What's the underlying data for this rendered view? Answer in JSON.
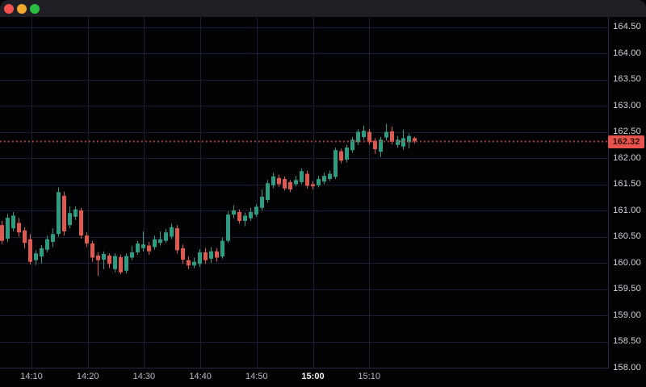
{
  "window": {
    "traffic_lights": {
      "close": "#f4544d",
      "minimize": "#f3a92d",
      "fullscreen": "#2bbf40"
    }
  },
  "colors": {
    "background": "#020204",
    "titlebar": "#1f1f25",
    "grid": "#1b1d33",
    "axis_border": "#272b42",
    "up": "#2f9c82",
    "down": "#dd5a50",
    "price_line": "#b2423c",
    "badge_bg": "#e9534e",
    "badge_text": "#2e0d0b",
    "axis_label": "#d4d6da",
    "time_label": "#b8bac2",
    "time_label_bold": "#f0f1f2"
  },
  "chart_data": {
    "type": "candlestick",
    "last_price": "162.32",
    "y_axis": {
      "min": 158.0,
      "max": 164.5,
      "step": 0.5,
      "labels": [
        "164.50",
        "164.00",
        "163.50",
        "163.00",
        "162.50",
        "162.00",
        "161.50",
        "161.00",
        "160.50",
        "160.00",
        "159.50",
        "159.00",
        "158.50",
        "158.00"
      ]
    },
    "x_axis": {
      "labels": [
        {
          "text": "14:10",
          "bold": false
        },
        {
          "text": "14:20",
          "bold": false
        },
        {
          "text": "14:30",
          "bold": false
        },
        {
          "text": "14:40",
          "bold": false
        },
        {
          "text": "14:50",
          "bold": false
        },
        {
          "text": "15:00",
          "bold": true
        },
        {
          "text": "15:10",
          "bold": false
        }
      ]
    },
    "candles": [
      {
        "t": "14:05",
        "o": 160.72,
        "h": 160.8,
        "l": 160.36,
        "c": 160.42
      },
      {
        "t": "14:06",
        "o": 160.46,
        "h": 160.93,
        "l": 160.4,
        "c": 160.86
      },
      {
        "t": "14:07",
        "o": 160.66,
        "h": 160.97,
        "l": 160.6,
        "c": 160.9
      },
      {
        "t": "14:08",
        "o": 160.76,
        "h": 160.86,
        "l": 160.5,
        "c": 160.58
      },
      {
        "t": "14:09",
        "o": 160.62,
        "h": 160.68,
        "l": 160.28,
        "c": 160.38
      },
      {
        "t": "14:10",
        "o": 160.45,
        "h": 160.55,
        "l": 159.97,
        "c": 160.02
      },
      {
        "t": "14:11",
        "o": 160.05,
        "h": 160.24,
        "l": 159.96,
        "c": 160.18
      },
      {
        "t": "14:12",
        "o": 160.12,
        "h": 160.34,
        "l": 159.99,
        "c": 160.28
      },
      {
        "t": "14:13",
        "o": 160.25,
        "h": 160.52,
        "l": 160.2,
        "c": 160.45
      },
      {
        "t": "14:14",
        "o": 160.4,
        "h": 160.66,
        "l": 160.3,
        "c": 160.55
      },
      {
        "t": "14:15",
        "o": 160.55,
        "h": 161.44,
        "l": 160.5,
        "c": 161.35
      },
      {
        "t": "14:16",
        "o": 161.28,
        "h": 161.36,
        "l": 160.52,
        "c": 160.6
      },
      {
        "t": "14:17",
        "o": 160.72,
        "h": 161.08,
        "l": 160.66,
        "c": 160.95
      },
      {
        "t": "14:18",
        "o": 160.88,
        "h": 161.08,
        "l": 160.82,
        "c": 161.02
      },
      {
        "t": "14:19",
        "o": 161.0,
        "h": 161.05,
        "l": 160.46,
        "c": 160.52
      },
      {
        "t": "14:20",
        "o": 160.52,
        "h": 160.58,
        "l": 160.3,
        "c": 160.37
      },
      {
        "t": "14:21",
        "o": 160.37,
        "h": 160.42,
        "l": 160.02,
        "c": 160.1
      },
      {
        "t": "14:22",
        "o": 160.14,
        "h": 160.2,
        "l": 159.75,
        "c": 160.05
      },
      {
        "t": "14:23",
        "o": 160.06,
        "h": 160.22,
        "l": 159.88,
        "c": 160.17
      },
      {
        "t": "14:24",
        "o": 160.14,
        "h": 160.18,
        "l": 159.9,
        "c": 159.98
      },
      {
        "t": "14:25",
        "o": 159.88,
        "h": 160.18,
        "l": 159.82,
        "c": 160.13
      },
      {
        "t": "14:26",
        "o": 160.11,
        "h": 160.16,
        "l": 159.78,
        "c": 159.82
      },
      {
        "t": "14:27",
        "o": 159.85,
        "h": 160.18,
        "l": 159.8,
        "c": 160.13
      },
      {
        "t": "14:28",
        "o": 160.1,
        "h": 160.32,
        "l": 160.05,
        "c": 160.2
      },
      {
        "t": "14:29",
        "o": 160.2,
        "h": 160.42,
        "l": 160.15,
        "c": 160.37
      },
      {
        "t": "14:30",
        "o": 160.28,
        "h": 160.6,
        "l": 160.22,
        "c": 160.35
      },
      {
        "t": "14:31",
        "o": 160.33,
        "h": 160.4,
        "l": 160.15,
        "c": 160.22
      },
      {
        "t": "14:32",
        "o": 160.3,
        "h": 160.52,
        "l": 160.25,
        "c": 160.45
      },
      {
        "t": "14:33",
        "o": 160.38,
        "h": 160.6,
        "l": 160.33,
        "c": 160.45
      },
      {
        "t": "14:34",
        "o": 160.42,
        "h": 160.65,
        "l": 160.38,
        "c": 160.58
      },
      {
        "t": "14:35",
        "o": 160.5,
        "h": 160.75,
        "l": 160.45,
        "c": 160.68
      },
      {
        "t": "14:36",
        "o": 160.66,
        "h": 160.72,
        "l": 160.18,
        "c": 160.24
      },
      {
        "t": "14:37",
        "o": 160.28,
        "h": 160.35,
        "l": 159.98,
        "c": 160.06
      },
      {
        "t": "14:38",
        "o": 160.05,
        "h": 160.12,
        "l": 159.88,
        "c": 159.95
      },
      {
        "t": "14:39",
        "o": 159.95,
        "h": 160.1,
        "l": 159.9,
        "c": 160.02
      },
      {
        "t": "14:40",
        "o": 159.98,
        "h": 160.26,
        "l": 159.92,
        "c": 160.2
      },
      {
        "t": "14:41",
        "o": 160.2,
        "h": 160.28,
        "l": 159.98,
        "c": 160.05
      },
      {
        "t": "14:42",
        "o": 160.08,
        "h": 160.3,
        "l": 160.0,
        "c": 160.22
      },
      {
        "t": "14:43",
        "o": 160.22,
        "h": 160.28,
        "l": 160.02,
        "c": 160.1
      },
      {
        "t": "14:44",
        "o": 160.12,
        "h": 160.48,
        "l": 160.08,
        "c": 160.42
      },
      {
        "t": "14:45",
        "o": 160.42,
        "h": 160.98,
        "l": 160.38,
        "c": 160.92
      },
      {
        "t": "14:46",
        "o": 160.92,
        "h": 161.1,
        "l": 160.85,
        "c": 161.0
      },
      {
        "t": "14:47",
        "o": 160.97,
        "h": 161.02,
        "l": 160.75,
        "c": 160.8
      },
      {
        "t": "14:48",
        "o": 160.8,
        "h": 160.96,
        "l": 160.7,
        "c": 160.9
      },
      {
        "t": "14:49",
        "o": 160.85,
        "h": 161.05,
        "l": 160.8,
        "c": 160.97
      },
      {
        "t": "14:50",
        "o": 160.92,
        "h": 161.12,
        "l": 160.88,
        "c": 161.07
      },
      {
        "t": "14:51",
        "o": 161.05,
        "h": 161.4,
        "l": 161.0,
        "c": 161.26
      },
      {
        "t": "14:52",
        "o": 161.2,
        "h": 161.58,
        "l": 161.15,
        "c": 161.52
      },
      {
        "t": "14:53",
        "o": 161.48,
        "h": 161.72,
        "l": 161.42,
        "c": 161.65
      },
      {
        "t": "14:54",
        "o": 161.62,
        "h": 161.68,
        "l": 161.45,
        "c": 161.5
      },
      {
        "t": "14:55",
        "o": 161.6,
        "h": 161.65,
        "l": 161.38,
        "c": 161.42
      },
      {
        "t": "14:56",
        "o": 161.54,
        "h": 161.58,
        "l": 161.35,
        "c": 161.4
      },
      {
        "t": "14:57",
        "o": 161.5,
        "h": 161.66,
        "l": 161.46,
        "c": 161.58
      },
      {
        "t": "14:58",
        "o": 161.54,
        "h": 161.8,
        "l": 161.5,
        "c": 161.75
      },
      {
        "t": "14:59",
        "o": 161.7,
        "h": 161.76,
        "l": 161.42,
        "c": 161.47
      },
      {
        "t": "15:00",
        "o": 161.5,
        "h": 161.56,
        "l": 161.4,
        "c": 161.46
      },
      {
        "t": "15:01",
        "o": 161.48,
        "h": 161.66,
        "l": 161.44,
        "c": 161.6
      },
      {
        "t": "15:02",
        "o": 161.55,
        "h": 161.72,
        "l": 161.5,
        "c": 161.66
      },
      {
        "t": "15:03",
        "o": 161.6,
        "h": 161.76,
        "l": 161.56,
        "c": 161.7
      },
      {
        "t": "15:04",
        "o": 161.64,
        "h": 162.2,
        "l": 161.6,
        "c": 162.15
      },
      {
        "t": "15:05",
        "o": 162.13,
        "h": 162.18,
        "l": 161.9,
        "c": 161.95
      },
      {
        "t": "15:06",
        "o": 161.97,
        "h": 162.25,
        "l": 161.92,
        "c": 162.2
      },
      {
        "t": "15:07",
        "o": 162.15,
        "h": 162.4,
        "l": 162.1,
        "c": 162.35
      },
      {
        "t": "15:08",
        "o": 162.3,
        "h": 162.55,
        "l": 162.25,
        "c": 162.5
      },
      {
        "t": "15:09",
        "o": 162.4,
        "h": 162.62,
        "l": 162.35,
        "c": 162.52
      },
      {
        "t": "15:10",
        "o": 162.5,
        "h": 162.56,
        "l": 162.25,
        "c": 162.3
      },
      {
        "t": "15:11",
        "o": 162.33,
        "h": 162.38,
        "l": 162.08,
        "c": 162.17
      },
      {
        "t": "15:12",
        "o": 162.12,
        "h": 162.4,
        "l": 162.02,
        "c": 162.35
      },
      {
        "t": "15:13",
        "o": 162.39,
        "h": 162.65,
        "l": 162.33,
        "c": 162.5
      },
      {
        "t": "15:14",
        "o": 162.51,
        "h": 162.6,
        "l": 162.26,
        "c": 162.31
      },
      {
        "t": "15:15",
        "o": 162.25,
        "h": 162.42,
        "l": 162.2,
        "c": 162.35
      },
      {
        "t": "15:16",
        "o": 162.22,
        "h": 162.54,
        "l": 162.16,
        "c": 162.38
      },
      {
        "t": "15:17",
        "o": 162.3,
        "h": 162.47,
        "l": 162.18,
        "c": 162.42
      },
      {
        "t": "15:18",
        "o": 162.38,
        "h": 162.41,
        "l": 162.28,
        "c": 162.32
      }
    ]
  }
}
